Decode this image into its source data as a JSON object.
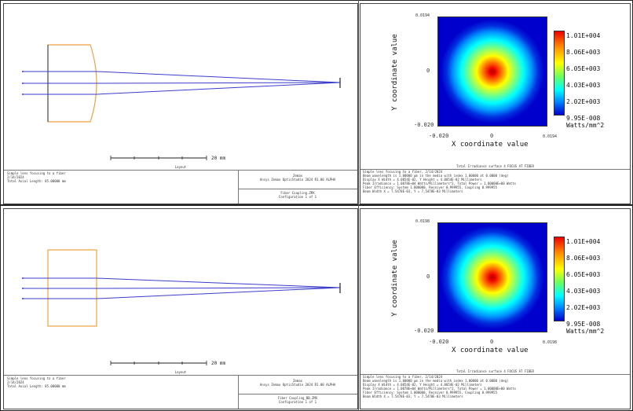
{
  "top": {
    "layout": {
      "scale_label": "20 mm",
      "title": "Layout",
      "info_left": [
        "Simple lens focusing to a fiber",
        "2/14/2024",
        "Total Axial Length:    85.00000 mm"
      ],
      "info_right_app": [
        "Zemax",
        "Ansys Zemax OpticStudio 2024 R1.00 ALPHA"
      ],
      "info_right_file": [
        "Fiber Coupling.ZMX",
        "Configuration 1 of 1"
      ]
    },
    "irradiance": {
      "y_label": "Y coordinate value",
      "x_label": "X coordinate value",
      "y_tick_top": "0.0194",
      "y_tick_mid": "0",
      "y_tick_bot": "-0.020",
      "x_tick_left": "-0.020",
      "x_tick_mid": "0",
      "x_tick_right": "0.0194",
      "colorbar_ticks": [
        "1.01E+004",
        "8.06E+003",
        "6.05E+003",
        "4.03E+003",
        "2.02E+003",
        "9.95E-008"
      ],
      "colorbar_unit": "Watts/mm^2",
      "title": "Total Irradiance surface 4 FOCUS AT FIBER",
      "info": [
        "Simple lens focusing to a fiber, 2/14/2024",
        "Beam wavelength is 1.00000 µm in the media with index 1.00000 at 0.0000 (deg)",
        "Display X Width = 4.0054E-02, Y Height = 4.0054E-02 Millimeters",
        "Peak Irradiance = 1.0078E+04 Watts/Millimeters^2, Total Power = 1.00000E+00 Watts",
        "Fiber Efficiency: System 1.000000, Receiver 0.999955, Coupling 0.999955",
        "Beam Width X = 7.5478E-03, Y = 7.5478E-03 Millimeters"
      ]
    }
  },
  "bottom": {
    "layout": {
      "scale_label": "20 mm",
      "title": "Layout",
      "info_left": [
        "Simple lens focusing to a fiber",
        "2/14/2024",
        "Total Axial Length:    85.00000 mm"
      ],
      "info_right_app": [
        "Zemax",
        "Ansys Zemax OpticStudio 2024 R1.00 ALPHA"
      ],
      "info_right_file": [
        "Fiber Coupling_BB.ZMX",
        "Configuration 1 of 1"
      ]
    },
    "irradiance": {
      "y_label": "Y coordinate value",
      "x_label": "X coordinate value",
      "y_tick_top": "0.0198",
      "y_tick_mid": "0",
      "y_tick_bot": "-0.020",
      "x_tick_left": "-0.020",
      "x_tick_mid": "0",
      "x_tick_right": "0.0198",
      "colorbar_ticks": [
        "1.01E+004",
        "8.06E+003",
        "6.05E+003",
        "4.03E+003",
        "2.02E+003",
        "9.95E-008"
      ],
      "colorbar_unit": "Watts/mm^2",
      "title": "Total Irradiance surface 4 FOCUS AT FIBER",
      "info": [
        "Simple lens focusing to a fiber, 2/14/2024",
        "Beam wavelength is 1.00000 µm in the media with index 1.00000 at 0.0000 (deg)",
        "Display X Width = 4.0054E-02, Y Height = 4.0054E-02 Millimeters",
        "Peak Irradiance = 1.0078E+04 Watts/Millimeters^2, Total Power = 1.00000E+00 Watts",
        "Fiber Efficiency: System 1.000000, Receiver 0.999955, Coupling 0.999955",
        "Beam Width X = 7.5478E-03, Y = 7.5478E-03 Millimeters"
      ]
    }
  }
}
